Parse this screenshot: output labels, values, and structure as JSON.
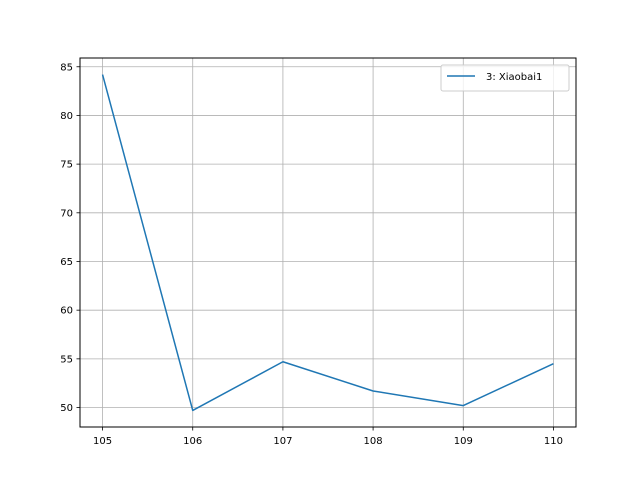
{
  "chart_data": {
    "type": "line",
    "title": "",
    "xlabel": "",
    "ylabel": "",
    "x": [
      105,
      106,
      107,
      108,
      109,
      110
    ],
    "series": [
      {
        "name": "3: Xiaobai1",
        "color": "#1f77b4",
        "values": [
          84.2,
          49.7,
          54.7,
          51.7,
          50.2,
          54.5
        ]
      }
    ],
    "xlim": [
      104.75,
      110.25
    ],
    "ylim": [
      48.0,
      85.9
    ],
    "xticks": [
      105,
      106,
      107,
      108,
      109,
      110
    ],
    "yticks": [
      50,
      55,
      60,
      65,
      70,
      75,
      80,
      85
    ],
    "grid": true,
    "legend_position": "top-right"
  }
}
